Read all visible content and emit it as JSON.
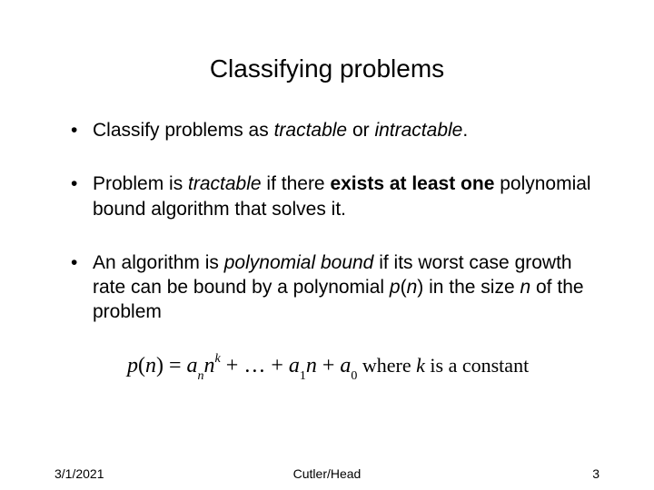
{
  "title": "Classifying problems",
  "bullets": {
    "b1_a": "Classify problems as ",
    "b1_b": "tractable",
    "b1_c": " or ",
    "b1_d": "intractable",
    "b1_e": ".",
    "b2_a": "Problem is ",
    "b2_b": "tractable",
    "b2_c": " if there ",
    "b2_d": "exists at least one",
    "b2_e": " polynomial bound algorithm that solves it.",
    "b3_a": "An algorithm is ",
    "b3_b": "polynomial bound",
    "b3_c": " if its worst case growth rate can be bound by a polynomial ",
    "b3_d": "p",
    "b3_e": "(",
    "b3_f": "n",
    "b3_g": ") in the size ",
    "b3_h": "n",
    "b3_i": " of the problem"
  },
  "formula": {
    "p": "p",
    "lp": "(",
    "n": "n",
    "rp": ")",
    "eq": " = ",
    "a": "a",
    "sub_n": "n",
    "sup_k": "k",
    "plus": " + ",
    "dots": "…",
    "sub_1": "1",
    "sub_0": "0",
    "tail": " where ",
    "kvar": "k",
    "tail2": " is a constant"
  },
  "footer": {
    "date": "3/1/2021",
    "center": "Cutler/Head",
    "page": "3"
  },
  "style": {
    "background": "#ffffff",
    "text_color": "#000000",
    "title_fontsize": 28,
    "body_fontsize": 21,
    "formula_fontsize": 24,
    "footer_fontsize": 14
  }
}
